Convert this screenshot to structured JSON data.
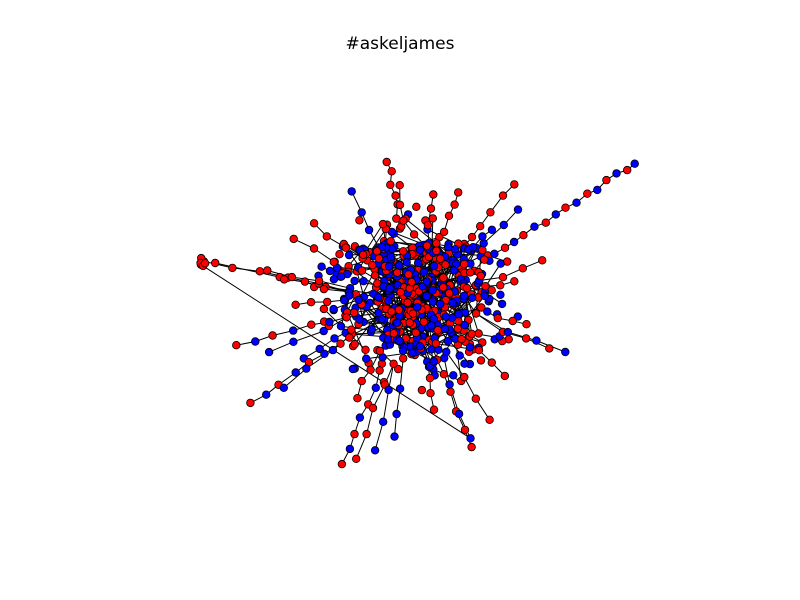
{
  "title": "#askeljames",
  "colors": {
    "background": "#ffffff",
    "node_red": "#ff0000",
    "node_blue": "#0000ff",
    "node_outline": "#000000",
    "edge": "#000000"
  }
}
